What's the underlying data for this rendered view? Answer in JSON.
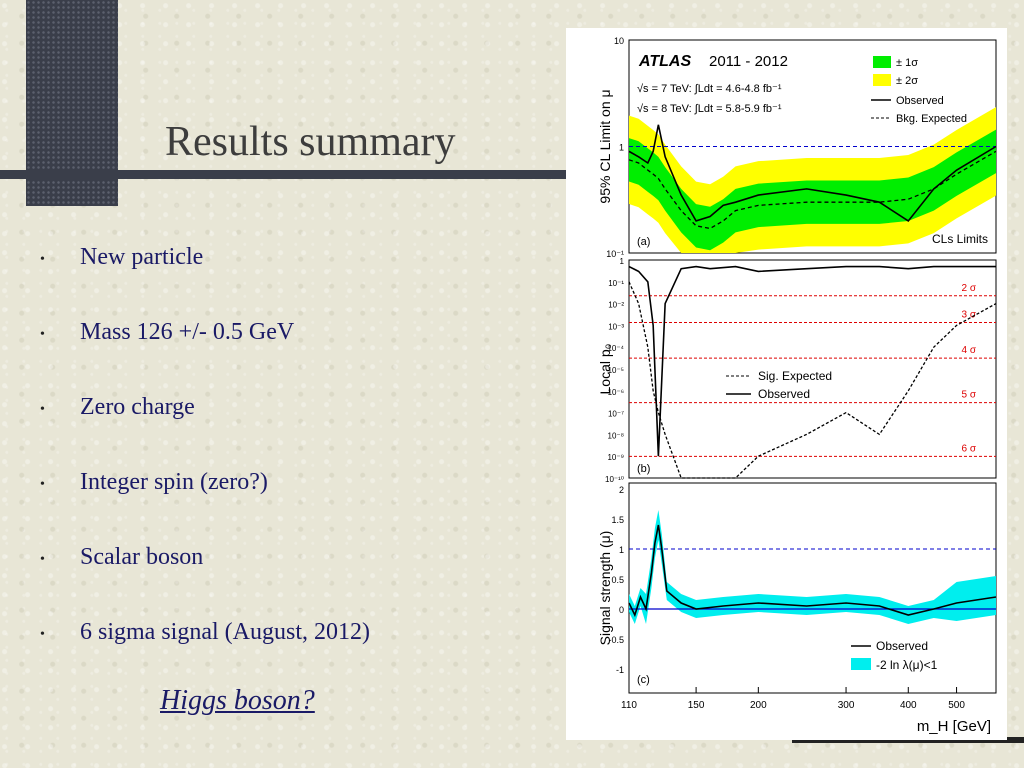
{
  "slide": {
    "title": "Results summary",
    "bullets": [
      "New particle",
      "Mass 126 +/- 0.5 GeV",
      "Zero charge",
      "Integer spin (zero?)",
      "Scalar boson",
      "6 sigma signal  (August, 2012)"
    ],
    "conclusion": "Higgs boson?"
  },
  "colors": {
    "text_blue": "#1a1a66",
    "green_band": "#00ee00",
    "yellow_band": "#ffff00",
    "cyan_band": "#00eeee",
    "ref_red": "#dd0000",
    "ref_blue": "#0000cc"
  },
  "figure": {
    "header": {
      "brand": "ATLAS",
      "years": "2011 - 2012"
    },
    "lumi": [
      "√s = 7 TeV: ∫Ldt = 4.6-4.8 fb⁻¹",
      "√s = 8 TeV: ∫Ldt = 5.8-5.9 fb⁻¹"
    ],
    "xlabel": "m_H [GeV]",
    "xticks": [
      "110",
      "150",
      "200",
      "300",
      "400",
      "500"
    ]
  },
  "chart_data": [
    {
      "type": "line",
      "panel": "(a)",
      "title": "",
      "ylabel": "95% CL Limit on μ",
      "yscale": "log",
      "ylim": [
        0.1,
        10
      ],
      "yticks": [
        "10",
        "1",
        "10⁻¹"
      ],
      "annotation": "CLs Limits",
      "legend": [
        "± 1σ",
        "± 2σ",
        "Observed",
        "Bkg. Expected"
      ],
      "reference_line": 1,
      "x": [
        110,
        115,
        120,
        123,
        126,
        130,
        140,
        150,
        160,
        170,
        180,
        200,
        250,
        300,
        350,
        400,
        450,
        500,
        600
      ],
      "series": [
        {
          "name": "Observed",
          "values": [
            0.9,
            0.8,
            0.7,
            0.9,
            1.6,
            0.8,
            0.35,
            0.2,
            0.22,
            0.28,
            0.3,
            0.35,
            0.4,
            0.35,
            0.3,
            0.2,
            0.4,
            0.6,
            1.0
          ]
        },
        {
          "name": "Bkg. Expected",
          "values": [
            0.75,
            0.7,
            0.6,
            0.55,
            0.5,
            0.4,
            0.25,
            0.18,
            0.17,
            0.2,
            0.25,
            0.28,
            0.3,
            0.3,
            0.3,
            0.32,
            0.4,
            0.55,
            0.9
          ]
        }
      ]
    },
    {
      "type": "line",
      "panel": "(b)",
      "title": "",
      "ylabel": "Local p₀",
      "yscale": "log",
      "ylim": [
        1e-10,
        1
      ],
      "yticks": [
        "1",
        "10⁻¹",
        "10⁻²",
        "10⁻³",
        "10⁻⁴",
        "10⁻⁵",
        "10⁻⁶",
        "10⁻⁷",
        "10⁻⁸",
        "10⁻⁹",
        "10⁻¹⁰"
      ],
      "sigma_lines": [
        "2 σ",
        "3 σ",
        "4 σ",
        "5 σ",
        "6 σ"
      ],
      "legend": [
        "Sig. Expected",
        "Observed"
      ],
      "x": [
        110,
        115,
        120,
        123,
        126,
        130,
        140,
        150,
        160,
        180,
        200,
        250,
        300,
        350,
        400,
        450,
        500,
        600
      ],
      "series": [
        {
          "name": "Observed",
          "values": [
            0.5,
            0.3,
            0.1,
            0.001,
            1e-09,
            0.01,
            0.4,
            0.5,
            0.4,
            0.5,
            0.3,
            0.4,
            0.5,
            0.5,
            0.4,
            0.5,
            0.5,
            0.5
          ]
        },
        {
          "name": "Sig. Expected",
          "values": [
            0.1,
            0.01,
            0.0001,
            1e-06,
            1e-07,
            1e-08,
            1e-10,
            1e-11,
            1e-11,
            1e-10,
            1e-09,
            1e-08,
            1e-07,
            1e-08,
            1e-06,
            0.0001,
            0.001,
            0.01
          ]
        }
      ]
    },
    {
      "type": "line",
      "panel": "(c)",
      "title": "",
      "ylabel": "Signal strength (μ)",
      "ylim": [
        -1.4,
        2.1
      ],
      "yticks": [
        "2",
        "1.5",
        "1",
        "0.5",
        "0",
        "-0.5",
        "-1"
      ],
      "legend": [
        "Observed",
        "-2 ln λ(μ)<1"
      ],
      "reference_lines": [
        0,
        1
      ],
      "x": [
        110,
        113,
        116,
        119,
        122,
        124,
        126,
        128,
        131,
        140,
        150,
        170,
        200,
        250,
        300,
        350,
        400,
        450,
        500,
        600
      ],
      "series": [
        {
          "name": "Observed",
          "values": [
            0.1,
            -0.1,
            0.2,
            0.0,
            0.6,
            1.1,
            1.4,
            1.0,
            0.3,
            0.1,
            0.0,
            0.05,
            0.1,
            0.05,
            0.1,
            0.05,
            -0.1,
            0.0,
            0.1,
            0.2
          ]
        }
      ]
    }
  ]
}
